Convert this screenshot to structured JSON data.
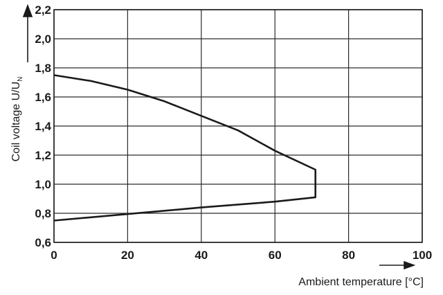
{
  "chart_data": {
    "type": "line",
    "title": "",
    "xlabel": "Ambient temperature [°C]",
    "ylabel": "Coil voltage U/U",
    "ylabel_subscript": "N",
    "xlim": [
      0,
      100
    ],
    "ylim": [
      0.6,
      2.2
    ],
    "x_ticks": [
      0,
      20,
      40,
      60,
      80,
      100
    ],
    "x_tick_labels": [
      "0",
      "20",
      "40",
      "60",
      "80",
      "100"
    ],
    "y_ticks": [
      0.6,
      0.8,
      1.0,
      1.2,
      1.4,
      1.6,
      1.8,
      2.0,
      2.2
    ],
    "y_tick_labels": [
      "0,6",
      "0,8",
      "1,0",
      "1,2",
      "1,4",
      "1,6",
      "1,8",
      "2,0",
      "2,2"
    ],
    "grid": true,
    "legend": "none",
    "series": [
      {
        "points": [
          [
            0,
            1.75
          ],
          [
            10,
            1.71
          ],
          [
            20,
            1.65
          ],
          [
            30,
            1.57
          ],
          [
            40,
            1.47
          ],
          [
            50,
            1.37
          ],
          [
            60,
            1.23
          ],
          [
            71,
            1.1
          ],
          [
            71,
            0.91
          ],
          [
            60,
            0.88
          ],
          [
            40,
            0.84
          ],
          [
            20,
            0.795
          ],
          [
            0,
            0.75
          ]
        ]
      }
    ]
  }
}
